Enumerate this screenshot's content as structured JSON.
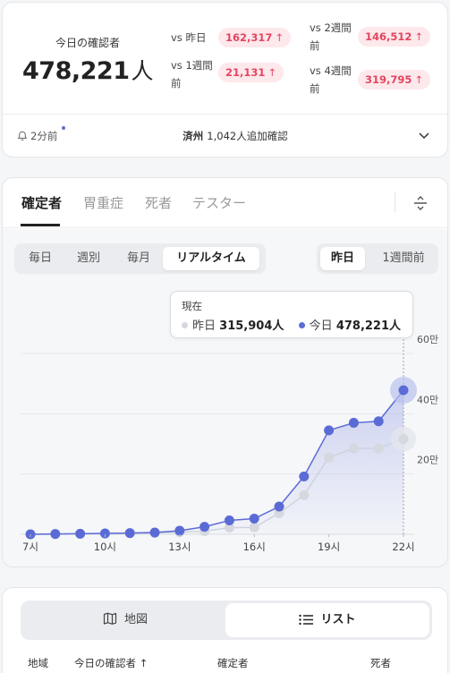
{
  "summary": {
    "today_label": "今日の確認者",
    "today_value": "478,221",
    "today_unit": "人",
    "comparisons": [
      {
        "label_line1": "vs 昨日",
        "label_line2": "",
        "value": "162,317",
        "arrow": "↑"
      },
      {
        "label_line1": "vs 1週間",
        "label_line2": "前",
        "value": "21,131",
        "arrow": "↑"
      },
      {
        "label_line1": "vs 2週間",
        "label_line2": "前",
        "value": "146,512",
        "arrow": "↑"
      },
      {
        "label_line1": "vs 4週間",
        "label_line2": "前",
        "value": "319,795",
        "arrow": "↑"
      }
    ],
    "notice_time": "2分前",
    "notice_region": "済州",
    "notice_text": "1,042人追加確認"
  },
  "tabs": [
    "確定者",
    "胃重症",
    "死者",
    "テスター"
  ],
  "period_tabs": [
    "毎日",
    "週別",
    "毎月",
    "リアルタイム"
  ],
  "compare_tabs": [
    "昨日",
    "1週間前"
  ],
  "tooltip": {
    "title": "現在",
    "yesterday_label": "昨日",
    "yesterday_value": "315,904人",
    "today_label": "今日",
    "today_value": "478,221人"
  },
  "chart_data": {
    "type": "line",
    "x": [
      "7時",
      "8時",
      "9時",
      "10時",
      "11時",
      "12時",
      "13時",
      "14時",
      "15時",
      "16時",
      "17時",
      "18時",
      "19時",
      "20時",
      "21時",
      "22時"
    ],
    "x_tick_labels": [
      "7시",
      "10시",
      "13시",
      "16시",
      "19시",
      "22시"
    ],
    "y_tick_labels": [
      "20만",
      "40만",
      "60만"
    ],
    "ylim": [
      0,
      600000
    ],
    "series": [
      {
        "name": "昨日",
        "color": "#cfd3dc",
        "values": [
          0,
          0,
          1000,
          2000,
          3000,
          4000,
          7000,
          10000,
          22000,
          23000,
          70000,
          130000,
          255000,
          285000,
          285000,
          315904
        ]
      },
      {
        "name": "今日",
        "color": "#5b6bd6",
        "values": [
          0,
          1000,
          2000,
          3000,
          4000,
          6000,
          12000,
          25000,
          46000,
          52000,
          92000,
          192000,
          345000,
          370000,
          375000,
          478221
        ]
      }
    ],
    "grid": true
  },
  "view": {
    "map_label": "地図",
    "list_label": "リスト"
  },
  "table_headers": [
    "地域",
    "今日の確認者 ↑",
    "確定者",
    "死者"
  ]
}
